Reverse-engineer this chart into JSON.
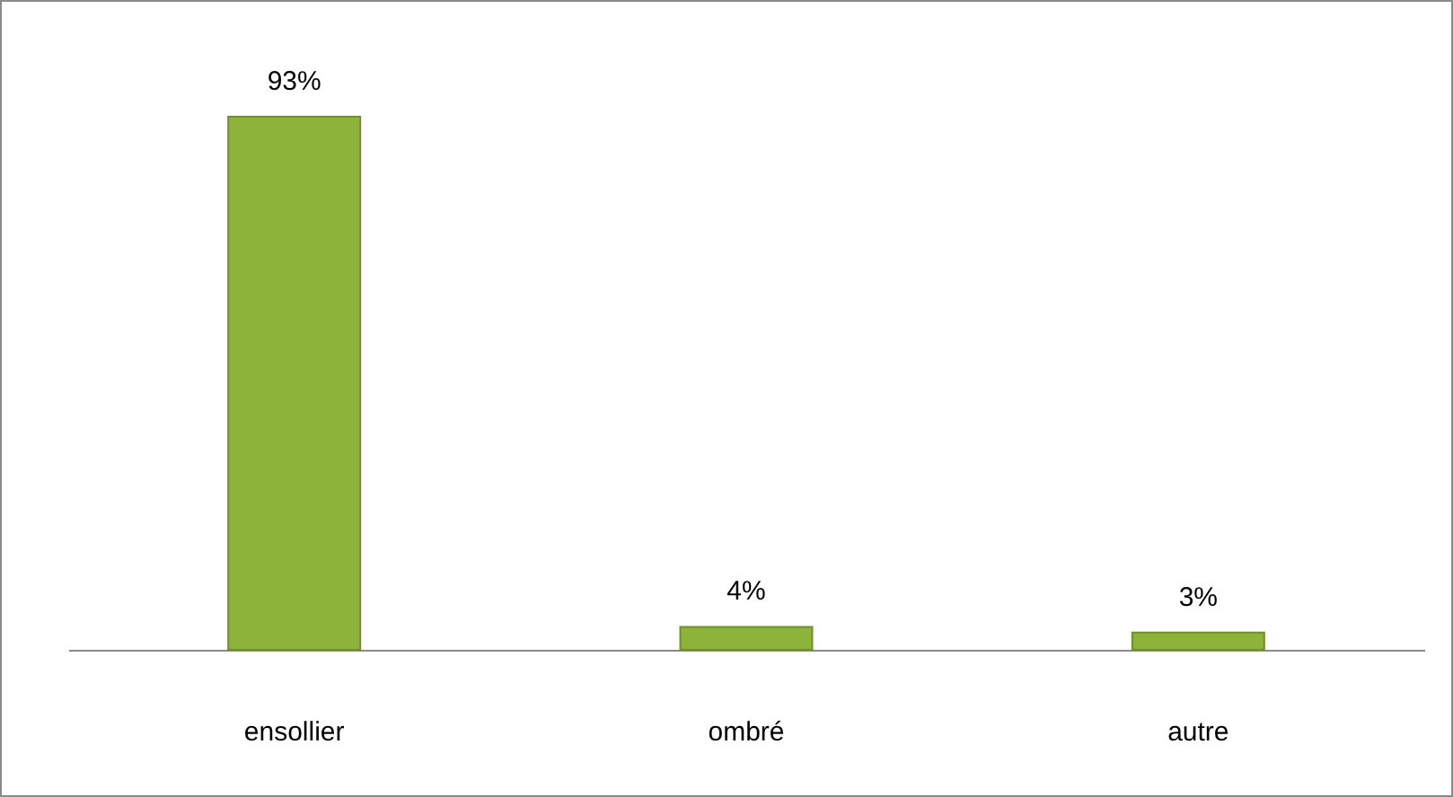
{
  "chart_data": {
    "type": "bar",
    "categories": [
      "ensollier",
      "ombré",
      "autre"
    ],
    "values": [
      93,
      4,
      3
    ],
    "value_labels": [
      "93%",
      "4%",
      "3%"
    ],
    "color": "#8db33a",
    "grid": false
  }
}
